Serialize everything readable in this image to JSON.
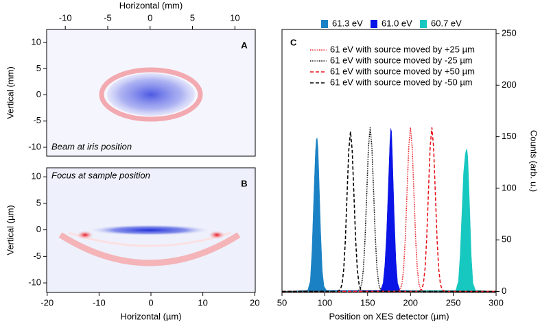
{
  "chart_data": [
    {
      "type": "image",
      "panel_label": "A",
      "annotation": "Beam at iris position",
      "xlabel": "Horizontal (mm)",
      "ylabel": "Vertical (mm)",
      "xlim": [
        -12.2,
        12.4
      ],
      "xticks": [
        -10,
        -5,
        0,
        5,
        10
      ],
      "ylim": [
        -11.7,
        12.5
      ],
      "yticks": [
        -10,
        -5,
        0,
        5,
        10
      ]
    },
    {
      "type": "image",
      "panel_label": "B",
      "annotation": "Focus at sample position",
      "xlabel": "Horizontal (µm)",
      "ylabel": "Vertical (µm)",
      "xlim": [
        -20.1,
        20.1
      ],
      "xticks": [
        -20,
        -10,
        0,
        10,
        20
      ],
      "ylim": [
        -11.8,
        11.7
      ],
      "yticks": [
        -10,
        -5,
        0,
        5,
        10
      ]
    },
    {
      "type": "line",
      "panel_label": "C",
      "xlabel": "Position on XES detector (µm)",
      "ylabel": "Counts (arb. u.)",
      "xlim": [
        50,
        300
      ],
      "xticks": [
        50,
        100,
        150,
        200,
        250,
        300
      ],
      "ylim": [
        -1,
        254
      ],
      "yticks": [
        0,
        50,
        100,
        150,
        200,
        250
      ],
      "series": [
        {
          "name": "61.3 eV",
          "color": "#1a82c4",
          "fill": true,
          "x": [
            50,
            80,
            83,
            85,
            87,
            89,
            90,
            91,
            92,
            93,
            95,
            97,
            99,
            102,
            300
          ],
          "values": [
            0,
            1,
            10,
            40,
            90,
            135,
            147,
            149,
            140,
            115,
            60,
            20,
            5,
            1,
            0
          ]
        },
        {
          "name": "61.0 eV",
          "color": "#0a14e6",
          "fill": true,
          "x": [
            50,
            165,
            168,
            170,
            172,
            174,
            176,
            177,
            178,
            179,
            181,
            183,
            185,
            188,
            300
          ],
          "values": [
            0,
            1,
            8,
            25,
            55,
            100,
            145,
            158,
            155,
            130,
            75,
            30,
            8,
            1,
            0
          ]
        },
        {
          "name": "60.7 eV",
          "color": "#16c8c0",
          "fill": true,
          "x": [
            50,
            253,
            256,
            258,
            260,
            262,
            264,
            265,
            266,
            267,
            269,
            271,
            273,
            276,
            300
          ],
          "values": [
            0,
            1,
            10,
            35,
            75,
            115,
            133,
            137,
            138,
            130,
            85,
            35,
            8,
            1,
            0
          ]
        },
        {
          "name": "61 eV with source moved by +25 µm",
          "color": "#e8141c",
          "dash": "dotted",
          "x": [
            50,
            185,
            188,
            190,
            192,
            194,
            196,
            198,
            200,
            202,
            204,
            206,
            208,
            210,
            212,
            215,
            300
          ],
          "values": [
            0,
            0.1,
            1.8,
            7,
            21.5,
            51.7,
            96.5,
            140,
            159,
            140,
            96.5,
            51.7,
            21.5,
            7,
            1.8,
            0.1,
            0
          ]
        },
        {
          "name": "61 eV with source moved by -25 µm",
          "color": "#000000",
          "dash": "dotted",
          "x": [
            50,
            138,
            141,
            143,
            145,
            147,
            149,
            151,
            153,
            155,
            157,
            159,
            161,
            163,
            165,
            168,
            300
          ],
          "values": [
            0,
            0.1,
            1.8,
            7,
            21.5,
            51.7,
            96.5,
            140,
            159,
            140,
            96.5,
            51.7,
            21.5,
            7,
            1.8,
            0.1,
            0
          ]
        },
        {
          "name": "61 eV with source moved by +50 µm",
          "color": "#e8141c",
          "dash": "dashed",
          "x": [
            50,
            210,
            213,
            215,
            217,
            219,
            221,
            223,
            225,
            227,
            229,
            231,
            233,
            235,
            237,
            240,
            300
          ],
          "values": [
            0,
            0.1,
            1.8,
            7,
            21.5,
            51.7,
            96.5,
            140,
            159,
            140,
            96.5,
            51.7,
            21.5,
            7,
            1.8,
            0.1,
            0
          ]
        },
        {
          "name": "61 eV with source moved by -50 µm",
          "color": "#000000",
          "dash": "dashed",
          "x": [
            50,
            115,
            118,
            120,
            122,
            124,
            126,
            128,
            130,
            132,
            134,
            136,
            138,
            140,
            142,
            145,
            300
          ],
          "values": [
            0,
            0.1,
            1.7,
            6.8,
            21,
            50.4,
            94,
            136.7,
            155,
            136.7,
            94,
            50.4,
            21,
            6.8,
            1.7,
            0.1,
            0
          ]
        }
      ]
    }
  ]
}
